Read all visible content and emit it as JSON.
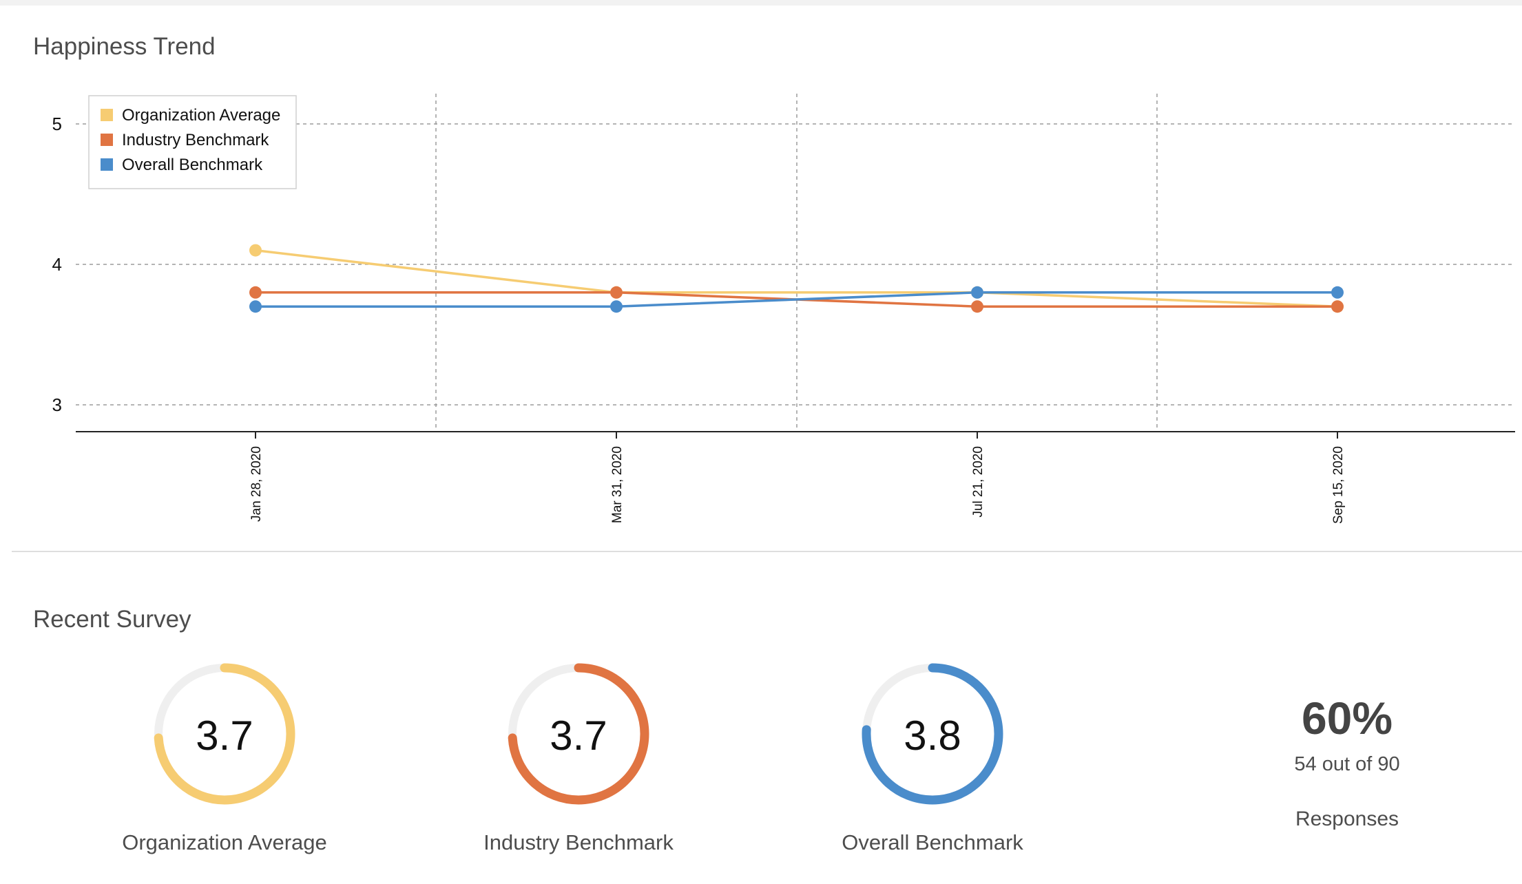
{
  "trend": {
    "title": "Happiness Trend"
  },
  "recent": {
    "title": "Recent Survey",
    "gauges": [
      {
        "value": "3.7",
        "fraction": 0.74,
        "label": "Organization Average",
        "color": "#f6cc72"
      },
      {
        "value": "3.7",
        "fraction": 0.74,
        "label": "Industry Benchmark",
        "color": "#e07442"
      },
      {
        "value": "3.8",
        "fraction": 0.76,
        "label": "Overall Benchmark",
        "color": "#4a8ccb"
      }
    ],
    "responses": {
      "percent": "60%",
      "count": "54 out of 90",
      "label": "Responses"
    }
  },
  "chart_data": {
    "type": "line",
    "title": "Happiness Trend",
    "categories": [
      "Jan 28, 2020",
      "Mar 31, 2020",
      "Jul 21, 2020",
      "Sep 15, 2020"
    ],
    "series": [
      {
        "name": "Organization Average",
        "color": "#f6cc72",
        "values": [
          4.1,
          3.8,
          3.8,
          3.7
        ]
      },
      {
        "name": "Industry Benchmark",
        "color": "#e07442",
        "values": [
          3.8,
          3.8,
          3.7,
          3.7
        ]
      },
      {
        "name": "Overall Benchmark",
        "color": "#4a8ccb",
        "values": [
          3.7,
          3.7,
          3.8,
          3.8
        ]
      }
    ],
    "yticks": [
      3,
      4,
      5
    ],
    "ylim": [
      2.8,
      5.22
    ],
    "xlabel": "",
    "ylabel": "",
    "legend": "top-left",
    "grid": true
  }
}
